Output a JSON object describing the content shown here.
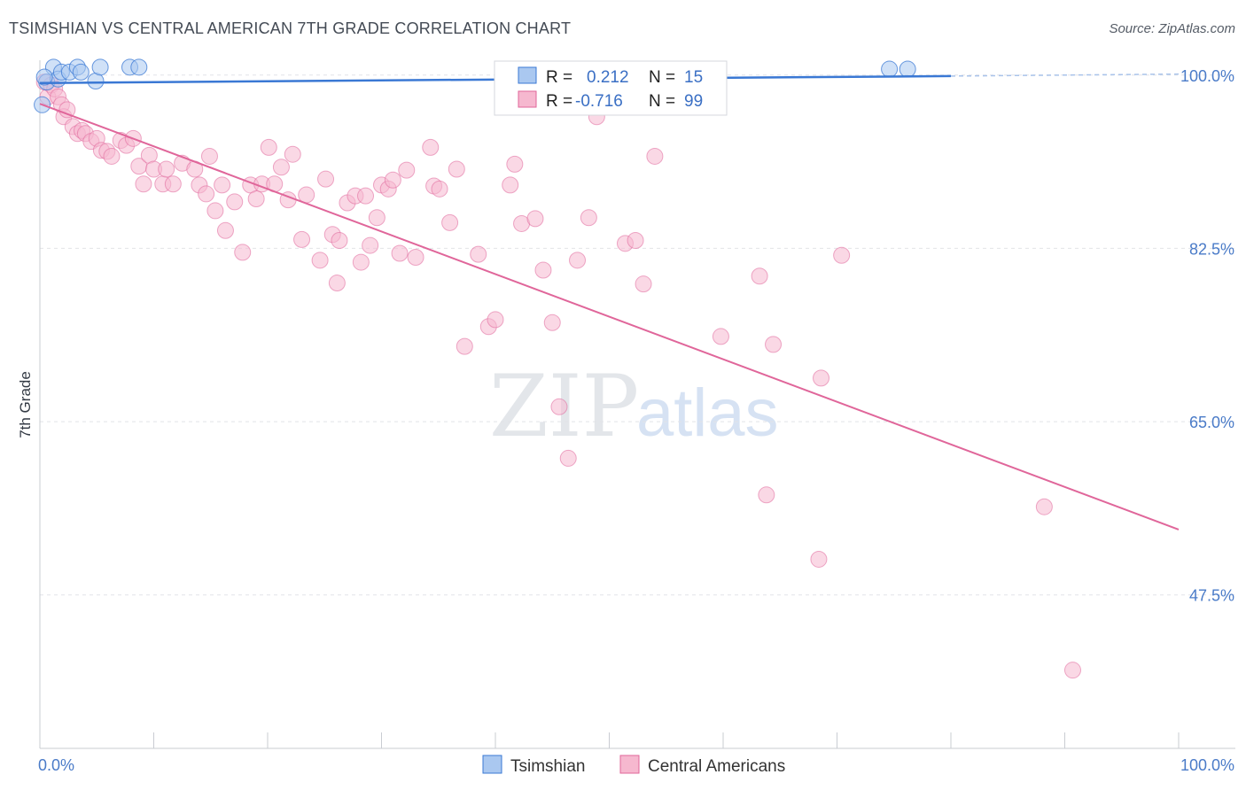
{
  "title": "TSIMSHIAN VS CENTRAL AMERICAN 7TH GRADE CORRELATION CHART",
  "source": "Source: ZipAtlas.com",
  "watermark": {
    "zip": "ZIP",
    "atlas": "atlas"
  },
  "colors": {
    "blue": "#3a78d4",
    "blue_fill": "#aac8f0",
    "pink": "#e0669a",
    "pink_fill": "#f6b8cf",
    "tick_text": "#4a7bc8",
    "grid": "#e2e4e8"
  },
  "legend": {
    "rows": [
      {
        "r_label": "R =",
        "r_value": "0.212",
        "n_label": "N =",
        "n_value": "15"
      },
      {
        "r_label": "R =",
        "r_value": "-0.716",
        "n_label": "N =",
        "n_value": "99"
      }
    ]
  },
  "bottom_legend": [
    "Tsimshian",
    "Central Americans"
  ],
  "chart_data": {
    "type": "scatter",
    "title": "TSIMSHIAN VS CENTRAL AMERICAN 7TH GRADE CORRELATION CHART",
    "xlabel": "",
    "ylabel": "7th Grade",
    "xlim": [
      0,
      100
    ],
    "ylim": [
      32,
      101.5
    ],
    "x_tick_labels": [
      "0.0%",
      "100.0%"
    ],
    "y_ticks": [
      100,
      82.5,
      65,
      47.5
    ],
    "y_tick_labels": [
      "100.0%",
      "82.5%",
      "65.0%",
      "47.5%"
    ],
    "grid": true,
    "legend_position": "top-center",
    "series": [
      {
        "name": "Tsimshian",
        "color": "#3a78d4",
        "trend": {
          "x": [
            0,
            80
          ],
          "y": [
            99.2,
            99.9
          ]
        },
        "trend_dashed_extension": {
          "x": [
            80,
            100
          ],
          "y": [
            99.9,
            100.1
          ]
        },
        "points": [
          [
            0.2,
            97.0
          ],
          [
            0.6,
            99.3
          ],
          [
            1.2,
            100.8
          ],
          [
            1.6,
            99.6
          ],
          [
            1.9,
            100.3
          ],
          [
            2.6,
            100.3
          ],
          [
            3.3,
            100.8
          ],
          [
            3.6,
            100.3
          ],
          [
            4.9,
            99.4
          ],
          [
            5.3,
            100.8
          ],
          [
            7.9,
            100.8
          ],
          [
            8.7,
            100.8
          ],
          [
            74.6,
            100.6
          ],
          [
            76.2,
            100.6
          ],
          [
            0.4,
            99.8
          ]
        ]
      },
      {
        "name": "Central Americans",
        "color": "#e0669a",
        "trend": {
          "x": [
            0,
            100
          ],
          "y": [
            97.1,
            54.1
          ]
        },
        "points": [
          [
            0.4,
            99.3
          ],
          [
            0.7,
            97.8
          ],
          [
            1.0,
            99.0
          ],
          [
            1.3,
            98.6
          ],
          [
            1.6,
            97.8
          ],
          [
            1.9,
            97.0
          ],
          [
            2.1,
            95.8
          ],
          [
            2.4,
            96.5
          ],
          [
            2.9,
            94.8
          ],
          [
            3.3,
            94.1
          ],
          [
            3.7,
            94.4
          ],
          [
            4.0,
            94.1
          ],
          [
            4.5,
            93.3
          ],
          [
            5.0,
            93.6
          ],
          [
            5.4,
            92.4
          ],
          [
            5.9,
            92.3
          ],
          [
            6.3,
            91.8
          ],
          [
            7.1,
            93.4
          ],
          [
            7.6,
            92.9
          ],
          [
            8.2,
            93.6
          ],
          [
            8.7,
            90.8
          ],
          [
            9.1,
            89.0
          ],
          [
            9.6,
            91.9
          ],
          [
            10.0,
            90.5
          ],
          [
            10.8,
            89.0
          ],
          [
            11.1,
            90.5
          ],
          [
            11.7,
            89.0
          ],
          [
            12.5,
            91.1
          ],
          [
            13.6,
            90.5
          ],
          [
            14.0,
            88.9
          ],
          [
            14.6,
            88.0
          ],
          [
            14.9,
            91.8
          ],
          [
            15.4,
            86.3
          ],
          [
            16.0,
            88.9
          ],
          [
            16.3,
            84.3
          ],
          [
            17.1,
            87.2
          ],
          [
            17.8,
            82.1
          ],
          [
            18.5,
            88.9
          ],
          [
            19.0,
            87.5
          ],
          [
            19.5,
            89.0
          ],
          [
            20.1,
            92.7
          ],
          [
            20.6,
            89.0
          ],
          [
            21.2,
            90.7
          ],
          [
            21.8,
            87.4
          ],
          [
            22.2,
            92.0
          ],
          [
            23.0,
            83.4
          ],
          [
            23.4,
            87.9
          ],
          [
            24.6,
            81.3
          ],
          [
            25.1,
            89.5
          ],
          [
            25.7,
            83.9
          ],
          [
            26.3,
            83.3
          ],
          [
            27.0,
            87.1
          ],
          [
            27.7,
            87.8
          ],
          [
            28.2,
            81.1
          ],
          [
            28.6,
            87.8
          ],
          [
            29.0,
            82.8
          ],
          [
            29.6,
            85.6
          ],
          [
            30.0,
            88.9
          ],
          [
            30.6,
            88.5
          ],
          [
            31.0,
            89.4
          ],
          [
            31.6,
            82.0
          ],
          [
            32.2,
            90.4
          ],
          [
            33.0,
            81.6
          ],
          [
            34.3,
            92.7
          ],
          [
            34.6,
            88.8
          ],
          [
            35.1,
            88.5
          ],
          [
            36.0,
            85.1
          ],
          [
            36.6,
            90.5
          ],
          [
            37.3,
            72.6
          ],
          [
            38.5,
            81.9
          ],
          [
            39.4,
            74.6
          ],
          [
            40.0,
            75.3
          ],
          [
            41.3,
            88.9
          ],
          [
            41.7,
            91.0
          ],
          [
            42.3,
            85.0
          ],
          [
            43.5,
            85.5
          ],
          [
            44.2,
            80.3
          ],
          [
            45.0,
            75.0
          ],
          [
            45.6,
            66.5
          ],
          [
            46.4,
            61.3
          ],
          [
            47.2,
            81.3
          ],
          [
            48.2,
            85.6
          ],
          [
            48.9,
            95.8
          ],
          [
            50.2,
            99.4
          ],
          [
            51.4,
            83.0
          ],
          [
            52.3,
            83.3
          ],
          [
            53.0,
            78.9
          ],
          [
            54.0,
            91.8
          ],
          [
            56.9,
            98.6
          ],
          [
            59.8,
            73.6
          ],
          [
            63.2,
            79.7
          ],
          [
            63.8,
            57.6
          ],
          [
            64.4,
            72.8
          ],
          [
            68.4,
            51.1
          ],
          [
            68.6,
            69.4
          ],
          [
            70.4,
            81.8
          ],
          [
            88.2,
            56.4
          ],
          [
            90.7,
            39.9
          ],
          [
            26.1,
            79.0
          ]
        ]
      }
    ]
  }
}
